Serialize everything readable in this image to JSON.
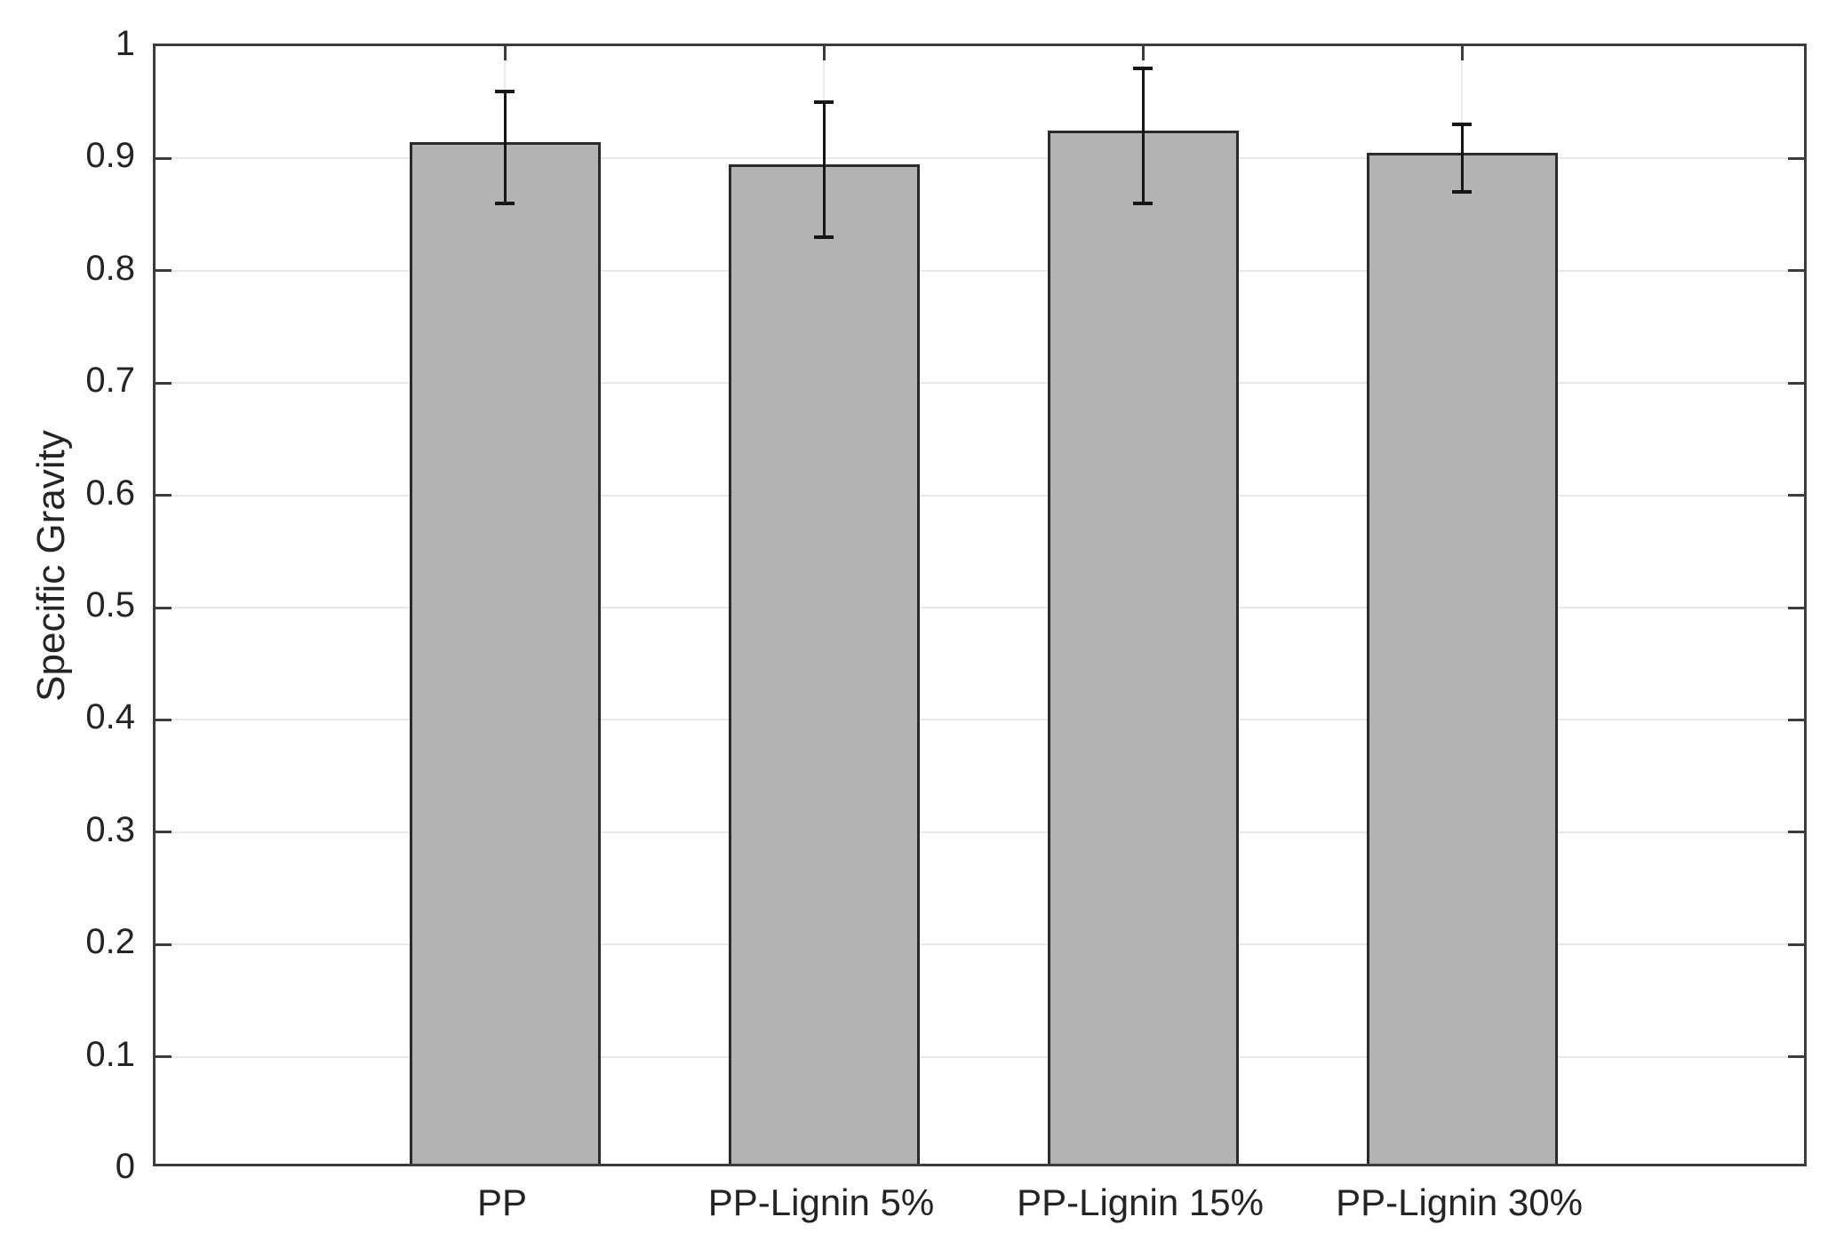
{
  "chart_data": {
    "type": "bar",
    "title": "",
    "xlabel": "",
    "ylabel": "Specific Gravity",
    "categories": [
      "PP",
      "PP-Lignin 5%",
      "PP-Lignin 15%",
      "PP-Lignin 30%"
    ],
    "values": [
      0.91,
      0.89,
      0.92,
      0.9
    ],
    "error_low": [
      0.86,
      0.83,
      0.86,
      0.87
    ],
    "error_high": [
      0.96,
      0.95,
      0.98,
      0.93
    ],
    "ylim": [
      0,
      1
    ],
    "ytick_step": 0.1,
    "ytick_labels": [
      "0",
      "0.1",
      "0.2",
      "0.3",
      "0.4",
      "0.5",
      "0.6",
      "0.7",
      "0.8",
      "0.9",
      "1"
    ],
    "grid": "both-light",
    "legend_position": "none",
    "colors": {
      "bar_fill": "#b3b3b3",
      "bar_edge": "#2b2b2b",
      "error_bar": "#161616",
      "axis": "#3c3c3c",
      "grid": "#e8e8e8",
      "text": "#242424",
      "background": "#ffffff"
    }
  }
}
